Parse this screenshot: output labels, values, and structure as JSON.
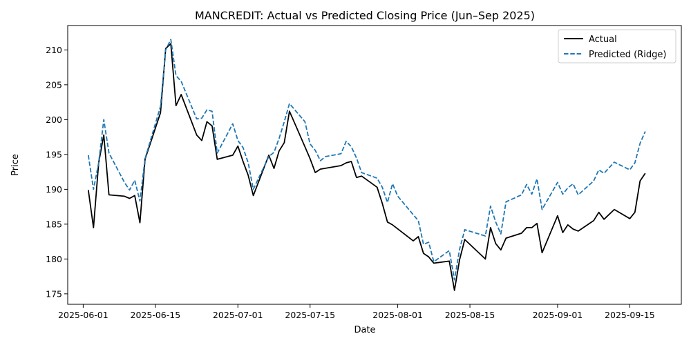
{
  "chart_data": {
    "type": "line",
    "title": "MANCREDIT: Actual vs Predicted Closing Price (Jun–Sep 2025)",
    "xlabel": "Date",
    "ylabel": "Price",
    "x_axis_type": "date",
    "xlim": [
      "2025-05-29",
      "2025-09-25"
    ],
    "ylim": [
      173.5,
      213.5
    ],
    "x_ticks": [
      "2025-06-01",
      "2025-06-15",
      "2025-07-01",
      "2025-07-15",
      "2025-08-01",
      "2025-08-15",
      "2025-09-01",
      "2025-09-15"
    ],
    "y_ticks": [
      175,
      180,
      185,
      190,
      195,
      200,
      205,
      210
    ],
    "grid": false,
    "legend": "top-right",
    "series": [
      {
        "name": "Actual",
        "color": "#000000",
        "style": "solid",
        "points": [
          [
            "2025-06-02",
            189.9
          ],
          [
            "2025-06-03",
            184.5
          ],
          [
            "2025-06-04",
            193.8
          ],
          [
            "2025-06-05",
            197.8
          ],
          [
            "2025-06-06",
            189.2
          ],
          [
            "2025-06-09",
            189.0
          ],
          [
            "2025-06-10",
            188.7
          ],
          [
            "2025-06-11",
            189.1
          ],
          [
            "2025-06-12",
            185.2
          ],
          [
            "2025-06-13",
            194.3
          ],
          [
            "2025-06-16",
            201.0
          ],
          [
            "2025-06-17",
            210.2
          ],
          [
            "2025-06-18",
            210.9
          ],
          [
            "2025-06-19",
            202.0
          ],
          [
            "2025-06-20",
            203.6
          ],
          [
            "2025-06-23",
            197.8
          ],
          [
            "2025-06-24",
            197.0
          ],
          [
            "2025-06-25",
            199.7
          ],
          [
            "2025-06-26",
            199.1
          ],
          [
            "2025-06-27",
            194.3
          ],
          [
            "2025-06-30",
            194.9
          ],
          [
            "2025-07-01",
            196.2
          ],
          [
            "2025-07-02",
            194.0
          ],
          [
            "2025-07-03",
            192.0
          ],
          [
            "2025-07-04",
            189.1
          ],
          [
            "2025-07-07",
            194.9
          ],
          [
            "2025-07-08",
            193.0
          ],
          [
            "2025-07-09",
            195.5
          ],
          [
            "2025-07-10",
            196.7
          ],
          [
            "2025-07-11",
            201.2
          ],
          [
            "2025-07-14",
            196.1
          ],
          [
            "2025-07-15",
            194.4
          ],
          [
            "2025-07-16",
            192.4
          ],
          [
            "2025-07-17",
            192.9
          ],
          [
            "2025-07-21",
            193.4
          ],
          [
            "2025-07-22",
            193.8
          ],
          [
            "2025-07-23",
            194.0
          ],
          [
            "2025-07-24",
            191.7
          ],
          [
            "2025-07-25",
            191.9
          ],
          [
            "2025-07-28",
            190.3
          ],
          [
            "2025-07-29",
            188.0
          ],
          [
            "2025-07-30",
            185.3
          ],
          [
            "2025-07-31",
            184.9
          ],
          [
            "2025-08-04",
            182.6
          ],
          [
            "2025-08-05",
            183.2
          ],
          [
            "2025-08-06",
            180.8
          ],
          [
            "2025-08-07",
            180.3
          ],
          [
            "2025-08-08",
            179.4
          ],
          [
            "2025-08-11",
            179.7
          ],
          [
            "2025-08-12",
            175.5
          ],
          [
            "2025-08-13",
            179.9
          ],
          [
            "2025-08-14",
            182.8
          ],
          [
            "2025-08-18",
            180.0
          ],
          [
            "2025-08-19",
            184.5
          ],
          [
            "2025-08-20",
            182.2
          ],
          [
            "2025-08-21",
            181.3
          ],
          [
            "2025-08-22",
            183.0
          ],
          [
            "2025-08-25",
            183.7
          ],
          [
            "2025-08-26",
            184.5
          ],
          [
            "2025-08-27",
            184.5
          ],
          [
            "2025-08-28",
            185.1
          ],
          [
            "2025-08-29",
            180.9
          ],
          [
            "2025-09-01",
            186.2
          ],
          [
            "2025-09-02",
            183.8
          ],
          [
            "2025-09-03",
            184.9
          ],
          [
            "2025-09-04",
            184.3
          ],
          [
            "2025-09-05",
            184.0
          ],
          [
            "2025-09-08",
            185.5
          ],
          [
            "2025-09-09",
            186.7
          ],
          [
            "2025-09-10",
            185.7
          ],
          [
            "2025-09-12",
            187.1
          ],
          [
            "2025-09-15",
            185.8
          ],
          [
            "2025-09-16",
            186.7
          ],
          [
            "2025-09-17",
            191.2
          ],
          [
            "2025-09-18",
            192.3
          ]
        ]
      },
      {
        "name": "Predicted (Ridge)",
        "color": "#1f77b4",
        "style": "dashed",
        "points": [
          [
            "2025-06-02",
            194.9
          ],
          [
            "2025-06-03",
            190.0
          ],
          [
            "2025-06-04",
            193.8
          ],
          [
            "2025-06-05",
            200.0
          ],
          [
            "2025-06-06",
            195.2
          ],
          [
            "2025-06-09",
            191.0
          ],
          [
            "2025-06-10",
            189.9
          ],
          [
            "2025-06-11",
            191.3
          ],
          [
            "2025-06-12",
            188.3
          ],
          [
            "2025-06-13",
            194.4
          ],
          [
            "2025-06-16",
            201.9
          ],
          [
            "2025-06-17",
            210.0
          ],
          [
            "2025-06-18",
            211.5
          ],
          [
            "2025-06-19",
            206.3
          ],
          [
            "2025-06-20",
            205.5
          ],
          [
            "2025-06-23",
            200.1
          ],
          [
            "2025-06-24",
            200.2
          ],
          [
            "2025-06-25",
            201.4
          ],
          [
            "2025-06-26",
            201.2
          ],
          [
            "2025-06-27",
            195.2
          ],
          [
            "2025-06-30",
            199.4
          ],
          [
            "2025-07-01",
            197.0
          ],
          [
            "2025-07-02",
            196.0
          ],
          [
            "2025-07-03",
            193.8
          ],
          [
            "2025-07-04",
            190.0
          ],
          [
            "2025-07-07",
            194.7
          ],
          [
            "2025-07-08",
            195.3
          ],
          [
            "2025-07-09",
            197.3
          ],
          [
            "2025-07-10",
            199.7
          ],
          [
            "2025-07-11",
            202.3
          ],
          [
            "2025-07-14",
            199.7
          ],
          [
            "2025-07-15",
            196.5
          ],
          [
            "2025-07-16",
            195.6
          ],
          [
            "2025-07-17",
            194.1
          ],
          [
            "2025-07-18",
            194.7
          ],
          [
            "2025-07-21",
            195.1
          ],
          [
            "2025-07-22",
            196.9
          ],
          [
            "2025-07-23",
            196.1
          ],
          [
            "2025-07-24",
            194.5
          ],
          [
            "2025-07-25",
            192.4
          ],
          [
            "2025-07-28",
            191.6
          ],
          [
            "2025-07-29",
            190.3
          ],
          [
            "2025-07-30",
            188.1
          ],
          [
            "2025-07-31",
            190.8
          ],
          [
            "2025-08-01",
            189.0
          ],
          [
            "2025-08-05",
            185.5
          ],
          [
            "2025-08-06",
            182.1
          ],
          [
            "2025-08-07",
            182.4
          ],
          [
            "2025-08-08",
            179.6
          ],
          [
            "2025-08-11",
            181.2
          ],
          [
            "2025-08-12",
            177.0
          ],
          [
            "2025-08-13",
            181.4
          ],
          [
            "2025-08-14",
            184.2
          ],
          [
            "2025-08-18",
            183.3
          ],
          [
            "2025-08-19",
            187.6
          ],
          [
            "2025-08-20",
            185.3
          ],
          [
            "2025-08-21",
            183.6
          ],
          [
            "2025-08-22",
            188.2
          ],
          [
            "2025-08-25",
            189.2
          ],
          [
            "2025-08-26",
            190.7
          ],
          [
            "2025-08-27",
            189.3
          ],
          [
            "2025-08-28",
            191.5
          ],
          [
            "2025-08-29",
            187.1
          ],
          [
            "2025-09-01",
            191.0
          ],
          [
            "2025-09-02",
            189.3
          ],
          [
            "2025-09-03",
            190.2
          ],
          [
            "2025-09-04",
            190.8
          ],
          [
            "2025-09-05",
            189.2
          ],
          [
            "2025-09-08",
            191.2
          ],
          [
            "2025-09-09",
            192.8
          ],
          [
            "2025-09-10",
            192.3
          ],
          [
            "2025-09-12",
            193.9
          ],
          [
            "2025-09-15",
            192.8
          ],
          [
            "2025-09-16",
            193.8
          ],
          [
            "2025-09-17",
            196.6
          ],
          [
            "2025-09-18",
            198.3
          ]
        ]
      }
    ]
  }
}
